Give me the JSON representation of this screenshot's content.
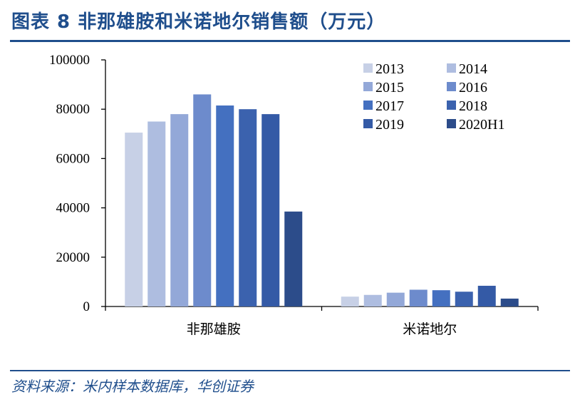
{
  "title": "图表 8  非那雄胺和米诺地尔销售额（万元）",
  "source": "资料来源：米内样本数据库，华创证券",
  "chart_data": {
    "type": "bar",
    "categories": [
      "非那雄胺",
      "米诺地尔"
    ],
    "series": [
      {
        "name": "2013",
        "values": [
          70500,
          4000
        ],
        "color": "#c7d0e6"
      },
      {
        "name": "2014",
        "values": [
          75000,
          4700
        ],
        "color": "#aebde0"
      },
      {
        "name": "2015",
        "values": [
          78000,
          5600
        ],
        "color": "#93a8d8"
      },
      {
        "name": "2016",
        "values": [
          86000,
          6800
        ],
        "color": "#6d8bcc"
      },
      {
        "name": "2017",
        "values": [
          81500,
          6600
        ],
        "color": "#4470c0"
      },
      {
        "name": "2018",
        "values": [
          80000,
          6000
        ],
        "color": "#3b62ae"
      },
      {
        "name": "2019",
        "values": [
          78000,
          8400
        ],
        "color": "#345aa6"
      },
      {
        "name": "2020H1",
        "values": [
          38500,
          3200
        ],
        "color": "#2c4c8a"
      }
    ],
    "ylim": [
      0,
      100000
    ],
    "yticks": [
      0,
      20000,
      40000,
      60000,
      80000,
      100000
    ],
    "xlabel": "",
    "ylabel": "",
    "legend_position": "top-right"
  }
}
